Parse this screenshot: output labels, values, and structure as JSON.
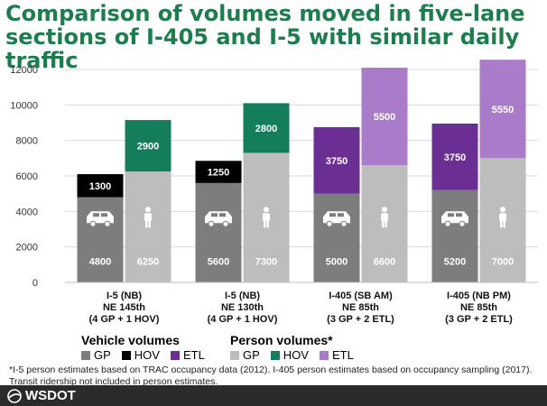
{
  "title": "Comparison of volumes moved in five-lane sections of I-405 and I-5 with similar daily traffic",
  "colors": {
    "vehicle_gp": "#7d7d7d",
    "vehicle_hov": "#000000",
    "vehicle_etl": "#6b2f94",
    "person_gp": "#bdbdbd",
    "person_hov": "#137d5c",
    "person_etl": "#a97bc9",
    "title": "#1e7d4f"
  },
  "chart_data": {
    "type": "bar",
    "stacked": true,
    "ylim": [
      0,
      12000
    ],
    "yticks": [
      0,
      2000,
      4000,
      6000,
      8000,
      10000,
      12000
    ],
    "grid": true,
    "categories": [
      [
        "I-5 (NB)",
        "NE 145th",
        "(4 GP + 1 HOV)"
      ],
      [
        "I-5 (NB)",
        "NE 130th",
        "(4 GP + 1 HOV)"
      ],
      [
        "I-405 (SB AM)",
        "NE 85th",
        "(3 GP + 2 ETL)"
      ],
      [
        "I-405 (NB PM)",
        "NE 85th",
        "(3 GP + 2 ETL)"
      ]
    ],
    "vehicle": {
      "gp": [
        4800,
        5600,
        5000,
        5200
      ],
      "managed": [
        1300,
        1250,
        3750,
        3750
      ],
      "managed_type": [
        "HOV",
        "HOV",
        "ETL",
        "ETL"
      ]
    },
    "person": {
      "gp": [
        6250,
        7300,
        6600,
        7000
      ],
      "managed": [
        2900,
        2800,
        5500,
        5550
      ],
      "managed_type": [
        "HOV",
        "HOV",
        "ETL",
        "ETL"
      ]
    }
  },
  "legend": {
    "vehicle_title": "Vehicle volumes",
    "person_title": "Person volumes*",
    "items": [
      "GP",
      "HOV",
      "ETL"
    ]
  },
  "footnote": "*I-5 person estimates based on TRAC occupancy data (2012). I-405 person estimates based on occupancy sampling (2017). Transit ridership not included in person estimates.",
  "footer": {
    "brand": "WSDOT",
    "logo_icon": "wsdot-swoosh-icon"
  }
}
